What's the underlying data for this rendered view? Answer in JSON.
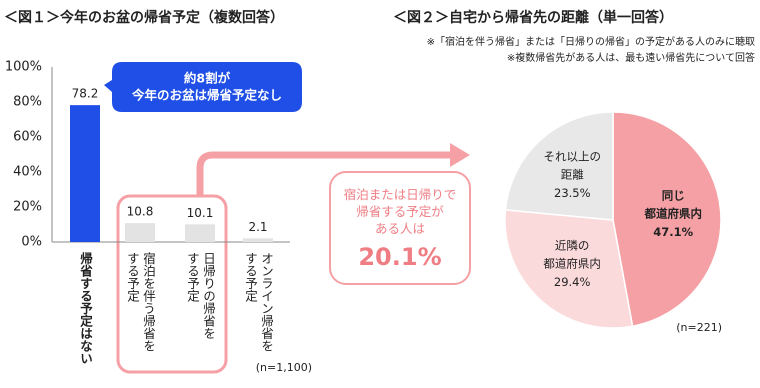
{
  "chart_data": [
    {
      "type": "bar",
      "title": "＜図１＞今年のお盆の帰省予定（複数回答）",
      "categories": [
        "帰省する予定はない",
        "宿泊を伴う帰省を\nする予定",
        "日帰りの帰省を\nする予定",
        "オンライン帰省を\nする予定"
      ],
      "values": [
        78.2,
        10.8,
        10.1,
        2.1
      ],
      "colors": [
        "#1f4fe6",
        "#e3e3e3",
        "#e3e3e3",
        "#e3e3e3"
      ],
      "ylim": [
        0,
        100
      ],
      "yticks": [
        {
          "value": 0,
          "label": "0%"
        },
        {
          "value": 20,
          "label": "20%"
        },
        {
          "value": 40,
          "label": "40%"
        },
        {
          "value": 60,
          "label": "60%"
        },
        {
          "value": 80,
          "label": "80%"
        },
        {
          "value": 100,
          "label": "100%"
        }
      ],
      "annotations": [
        "約8割が\n今年のお盆は帰省予定なし",
        "宿泊または日帰りで\n帰省する予定が\nある人は",
        "20.1%"
      ],
      "note": "(n=1,100)"
    },
    {
      "type": "pie",
      "title": "＜図２＞自宅から帰省先の距離（単一回答）",
      "notes": [
        "※「宿泊を伴う帰省」または「日帰りの帰省」の予定がある人のみに聴取",
        "※複数帰省先がある人は、最も遠い帰省先について回答"
      ],
      "categories": [
        "同じ\n都道府県内",
        "近隣の\n都道府県内",
        "それ以上の\n距離"
      ],
      "values": [
        47.1,
        29.4,
        23.5
      ],
      "value_labels": [
        "47.1%",
        "29.4%",
        "23.5%"
      ],
      "colors": [
        "#f5a0a4",
        "#fbdadb",
        "#e8e8e8"
      ],
      "note": "(n=221)"
    }
  ]
}
